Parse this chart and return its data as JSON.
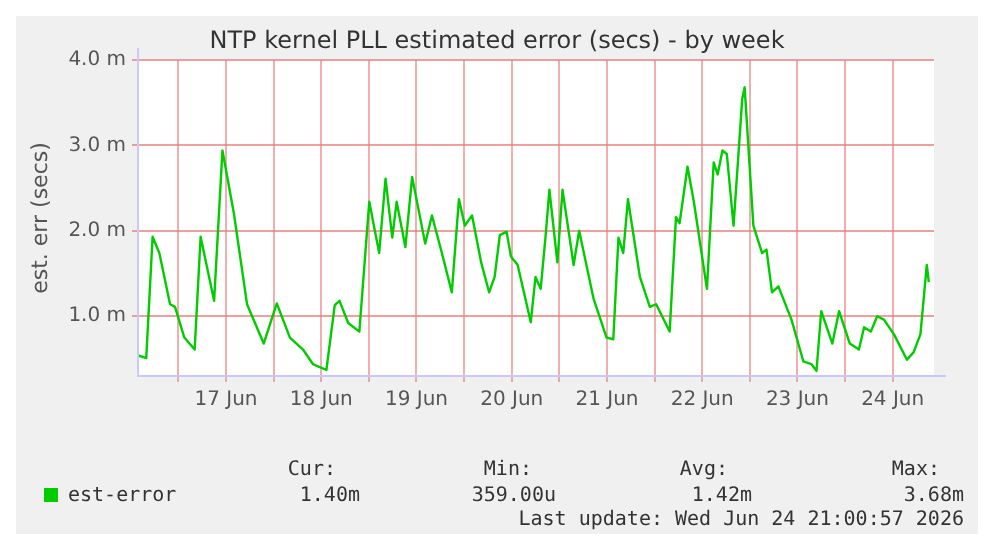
{
  "chart_data": {
    "type": "line",
    "title": "NTP kernel PLL estimated error (secs) - by week",
    "ylabel": "est. err (secs)",
    "xlim": [
      "2026-06-16T13:50",
      "2026-06-24T22:25"
    ],
    "xticks": [
      {
        "value": "2026-06-17T00:00",
        "label": null
      },
      {
        "value": "2026-06-17T12:00",
        "label": "17 Jun"
      },
      {
        "value": "2026-06-18T00:00",
        "label": null
      },
      {
        "value": "2026-06-18T12:00",
        "label": "18 Jun"
      },
      {
        "value": "2026-06-19T00:00",
        "label": null
      },
      {
        "value": "2026-06-19T12:00",
        "label": "19 Jun"
      },
      {
        "value": "2026-06-20T00:00",
        "label": null
      },
      {
        "value": "2026-06-20T12:00",
        "label": "20 Jun"
      },
      {
        "value": "2026-06-21T00:00",
        "label": null
      },
      {
        "value": "2026-06-21T12:00",
        "label": "21 Jun"
      },
      {
        "value": "2026-06-22T00:00",
        "label": null
      },
      {
        "value": "2026-06-22T12:00",
        "label": "22 Jun"
      },
      {
        "value": "2026-06-23T00:00",
        "label": null
      },
      {
        "value": "2026-06-23T12:00",
        "label": "23 Jun"
      },
      {
        "value": "2026-06-24T00:00",
        "label": null
      },
      {
        "value": "2026-06-24T12:00",
        "label": "24 Jun"
      }
    ],
    "ylim": [
      0.3,
      4.0
    ],
    "yticks": [
      {
        "value": 1,
        "label": "1.0 m"
      },
      {
        "value": 2,
        "label": "2.0 m"
      },
      {
        "value": 3,
        "label": "3.0 m"
      },
      {
        "value": 4,
        "label": "4.0 m"
      }
    ],
    "grid": true,
    "legend": "bottom",
    "marker": "none",
    "line_style": "solid",
    "annotations": [
      "Cur:",
      "Min:",
      "Avg:",
      "Max:",
      "1.40m",
      "359.00u",
      "1.42m",
      "3.68m",
      "Last update: Wed Jun 24 21:00:57 2026"
    ],
    "x": [
      "2026-06-16T13:54",
      "2026-06-16T15:54",
      "2026-06-16T17:30",
      "2026-06-16T19:12",
      "2026-06-16T21:54",
      "2026-06-16T23:09",
      "2026-06-17T01:30",
      "2026-06-17T04:06",
      "2026-06-17T05:36",
      "2026-06-17T09:00",
      "2026-06-17T11:06",
      "2026-06-17T14:00",
      "2026-06-17T17:18",
      "2026-06-17T21:30",
      "2026-06-18T00:48",
      "2026-06-18T04:06",
      "2026-06-18T07:24",
      "2026-06-18T09:54",
      "2026-06-18T13:18",
      "2026-06-18T15:24",
      "2026-06-18T16:36",
      "2026-06-18T18:48",
      "2026-06-18T21:36",
      "2026-06-19T00:06",
      "2026-06-19T02:36",
      "2026-06-19T04:12",
      "2026-06-19T05:54",
      "2026-06-19T07:00",
      "2026-06-19T09:12",
      "2026-06-19T10:54",
      "2026-06-19T14:12",
      "2026-06-19T15:54",
      "2026-06-19T18:24",
      "2026-06-19T20:54",
      "2026-06-19T22:42",
      "2026-06-20T00:12",
      "2026-06-20T02:00",
      "2026-06-20T04:18",
      "2026-06-20T06:18",
      "2026-06-20T07:42",
      "2026-06-20T09:00",
      "2026-06-20T10:42",
      "2026-06-20T11:48",
      "2026-06-20T13:30",
      "2026-06-20T16:48",
      "2026-06-20T18:00",
      "2026-06-20T19:18",
      "2026-06-20T20:30",
      "2026-06-20T21:30",
      "2026-06-20T23:30",
      "2026-06-21T00:48",
      "2026-06-21T03:36",
      "2026-06-21T05:00",
      "2026-06-21T08:36",
      "2026-06-21T11:54",
      "2026-06-21T13:36",
      "2026-06-21T14:54",
      "2026-06-21T16:06",
      "2026-06-21T17:18",
      "2026-06-21T20:18",
      "2026-06-21T22:48",
      "2026-06-22T00:24",
      "2026-06-22T03:48",
      "2026-06-22T05:24",
      "2026-06-22T06:18",
      "2026-06-22T08:18",
      "2026-06-22T09:54",
      "2026-06-22T13:12",
      "2026-06-22T14:54",
      "2026-06-22T15:54",
      "2026-06-22T17:06",
      "2026-06-22T18:12",
      "2026-06-22T19:54",
      "2026-06-22T22:06",
      "2026-06-22T22:42",
      "2026-06-23T00:54",
      "2026-06-23T03:06",
      "2026-06-23T04:12",
      "2026-06-23T05:36",
      "2026-06-23T07:12",
      "2026-06-23T10:30",
      "2026-06-23T13:30",
      "2026-06-23T15:30",
      "2026-06-23T16:48",
      "2026-06-23T18:00",
      "2026-06-23T20:48",
      "2026-06-23T22:30",
      "2026-06-24T01:12",
      "2026-06-24T03:30",
      "2026-06-24T04:48",
      "2026-06-24T06:30",
      "2026-06-24T08:06",
      "2026-06-24T09:48",
      "2026-06-24T12:18",
      "2026-06-24T15:36",
      "2026-06-24T17:18",
      "2026-06-24T19:00",
      "2026-06-24T20:36",
      "2026-06-24T21:06"
    ],
    "series": [
      {
        "name": "est-error",
        "color": "#00cc00",
        "values": [
          0.54,
          0.51,
          1.93,
          1.74,
          1.14,
          1.11,
          0.75,
          0.61,
          1.93,
          1.18,
          2.94,
          2.2,
          1.14,
          0.68,
          1.15,
          0.75,
          0.61,
          0.44,
          0.37,
          1.13,
          1.18,
          0.92,
          0.82,
          2.34,
          1.74,
          2.61,
          1.92,
          2.34,
          1.81,
          2.63,
          1.85,
          2.18,
          1.74,
          1.28,
          2.37,
          2.06,
          2.18,
          1.63,
          1.28,
          1.46,
          1.95,
          1.99,
          1.7,
          1.6,
          0.93,
          1.46,
          1.32,
          1.92,
          2.48,
          1.63,
          2.48,
          1.6,
          2.0,
          1.21,
          0.75,
          0.73,
          1.92,
          1.74,
          2.37,
          1.46,
          1.11,
          1.14,
          0.82,
          2.16,
          2.09,
          2.75,
          2.34,
          1.32,
          2.8,
          2.66,
          2.94,
          2.9,
          2.06,
          3.55,
          3.68,
          2.06,
          1.74,
          1.78,
          1.28,
          1.35,
          0.96,
          0.47,
          0.44,
          0.36,
          1.06,
          0.68,
          1.06,
          0.68,
          0.61,
          0.87,
          0.82,
          1.0,
          0.96,
          0.79,
          0.49,
          0.58,
          0.79,
          1.6,
          1.4
        ]
      }
    ]
  }
}
